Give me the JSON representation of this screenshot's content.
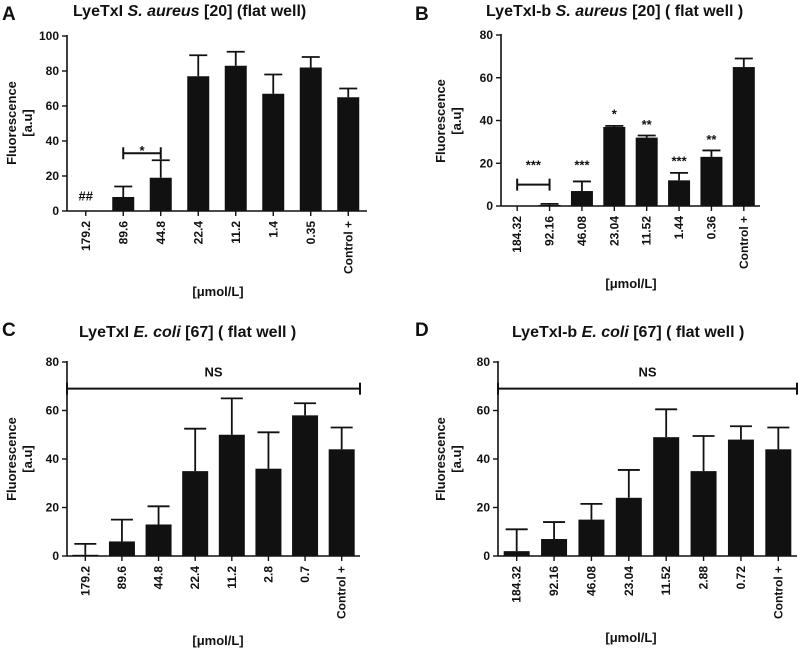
{
  "chart_data": [
    {
      "type": "bar",
      "panel": "A",
      "title": {
        "pre": "LyeTxI ",
        "italic": "S. aureus",
        "post": " [20] (flat well)"
      },
      "ylabel_lines": [
        "Fluorescence",
        "[a.u]"
      ],
      "xlabel": "[μmol/L]",
      "ylim": [
        0,
        100
      ],
      "yticks": [
        0,
        20,
        40,
        60,
        80,
        100
      ],
      "categories": [
        "179.2",
        "89.6",
        "44.8",
        "22.4",
        "11.2",
        "1.4",
        "0.35",
        "Control +"
      ],
      "values": [
        0.3,
        8,
        19,
        77,
        83,
        67,
        82,
        65
      ],
      "errors": [
        0,
        6,
        10,
        12,
        8,
        11,
        6,
        5
      ],
      "annotations": [
        {
          "text": "##",
          "cat": 0,
          "y": 6
        },
        {
          "text": "*",
          "cat": 1.5,
          "y": 32
        },
        {
          "bracket": [
            1,
            2
          ],
          "y": 33
        }
      ]
    },
    {
      "type": "bar",
      "panel": "B",
      "title": {
        "pre": "LyeTxI-b ",
        "italic": "S. aureus",
        "post": " [20] ( flat well )"
      },
      "ylabel_lines": [
        "Fluorescence",
        "[a.u]"
      ],
      "xlabel": "[μmol/L]",
      "ylim": [
        0,
        80
      ],
      "yticks": [
        0,
        20,
        40,
        60,
        80
      ],
      "categories": [
        "184.32",
        "92.16",
        "46.08",
        "23.04",
        "11.52",
        "1.44",
        "0.36",
        "Control +"
      ],
      "values": [
        0.2,
        0.5,
        7,
        37,
        32,
        12,
        23,
        65
      ],
      "errors": [
        0,
        0.5,
        4.5,
        0.5,
        1,
        3.5,
        3,
        4
      ],
      "annotations": [
        {
          "text": "***",
          "cat": 0.5,
          "y": 17
        },
        {
          "bracket": [
            0,
            1
          ],
          "y": 10
        },
        {
          "text": "***",
          "cat": 2,
          "y": 17
        },
        {
          "text": "*",
          "cat": 3,
          "y": 41
        },
        {
          "text": "**",
          "cat": 4,
          "y": 36
        },
        {
          "text": "***",
          "cat": 5,
          "y": 19
        },
        {
          "text": "**",
          "cat": 6,
          "y": 29
        }
      ]
    },
    {
      "type": "bar",
      "panel": "C",
      "title": {
        "pre": "LyeTxI ",
        "italic": "E. coli",
        "post": " [67] ( flat well )"
      },
      "ylabel_lines": [
        "Fluorescence",
        "[a.u]"
      ],
      "xlabel": "[μmol/L]",
      "ylim": [
        0,
        80
      ],
      "yticks": [
        0,
        20,
        40,
        60,
        80
      ],
      "categories": [
        "179.2",
        "89.6",
        "44.8",
        "22.4",
        "11.2",
        "2.8",
        "0.7",
        "Control +"
      ],
      "values": [
        0.5,
        6,
        13,
        35,
        50,
        36,
        58,
        44
      ],
      "errors": [
        4.5,
        9,
        7.5,
        17.5,
        15,
        15,
        5,
        9
      ],
      "annotations": [
        {
          "text": "NS",
          "cat": 3.5,
          "y": 74
        },
        {
          "bracket": [
            -0.5,
            7.5
          ],
          "y": 69
        }
      ]
    },
    {
      "type": "bar",
      "panel": "D",
      "title": {
        "pre": "LyeTxI-b ",
        "italic": "E. coli",
        "post": " [67] ( flat well )"
      },
      "ylabel_lines": [
        "Fluorescence",
        "[a.u]"
      ],
      "xlabel": "[μmol/L]",
      "ylim": [
        0,
        80
      ],
      "yticks": [
        0,
        20,
        40,
        60,
        80
      ],
      "categories": [
        "184.32",
        "92.16",
        "46.08",
        "23.04",
        "11.52",
        "2.88",
        "0.72",
        "Control +"
      ],
      "values": [
        2,
        7,
        15,
        24,
        49,
        35,
        48,
        44
      ],
      "errors": [
        9,
        7,
        6.5,
        11.5,
        11.5,
        14.5,
        5.5,
        9
      ],
      "annotations": [
        {
          "text": "NS",
          "cat": 3.5,
          "y": 74
        },
        {
          "bracket": [
            -0.5,
            7.5
          ],
          "y": 69
        }
      ]
    }
  ]
}
